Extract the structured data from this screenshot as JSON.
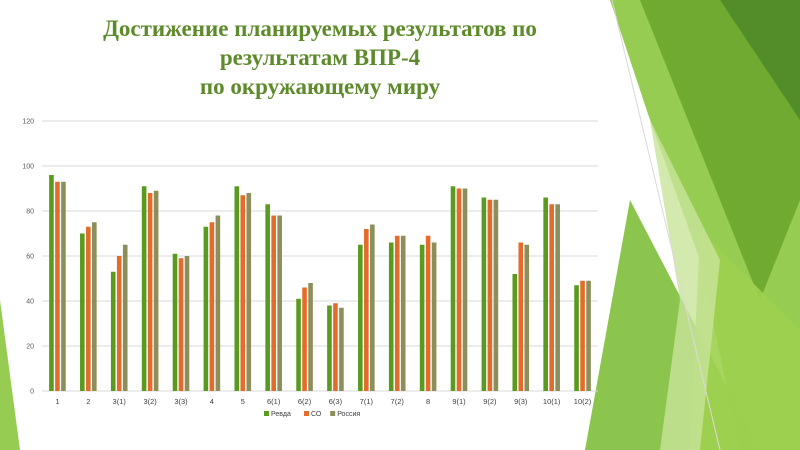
{
  "slide": {
    "title_lines": [
      "Достижение планируемых результатов по",
      "результатам ВПР-4",
      "по окружающему миру"
    ]
  },
  "colors": {
    "title": "#5d8a2a",
    "decor_green": [
      "#8cc63f",
      "#6aa32b",
      "#b5d97a",
      "#4f8a2a"
    ]
  },
  "chart_data": {
    "type": "bar",
    "categories": [
      "1",
      "2",
      "3(1)",
      "3(2)",
      "3(3)",
      "4",
      "5",
      "6(1)",
      "6(2)",
      "6(3)",
      "7(1)",
      "7(2)",
      "8",
      "9(1)",
      "9(2)",
      "9(3)",
      "10(1)",
      "10(2)"
    ],
    "series": [
      {
        "name": "Ревда",
        "color": "#5a9a1e",
        "values": [
          96,
          70,
          53,
          91,
          61,
          73,
          91,
          83,
          41,
          38,
          65,
          66,
          65,
          91,
          86,
          52,
          86,
          47
        ]
      },
      {
        "name": "СО",
        "color": "#e36c2a",
        "values": [
          93,
          73,
          60,
          88,
          59,
          75,
          87,
          78,
          46,
          39,
          72,
          69,
          69,
          90,
          85,
          66,
          83,
          49
        ]
      },
      {
        "name": "Россия",
        "color": "#8c8f5a",
        "values": [
          93,
          75,
          65,
          89,
          60,
          78,
          88,
          78,
          48,
          37,
          74,
          69,
          66,
          90,
          85,
          65,
          83,
          49
        ]
      }
    ],
    "ylim": [
      0,
      120
    ],
    "yticks": [
      0,
      20,
      40,
      60,
      80,
      100,
      120
    ],
    "grid": true,
    "legend": "bottom"
  }
}
